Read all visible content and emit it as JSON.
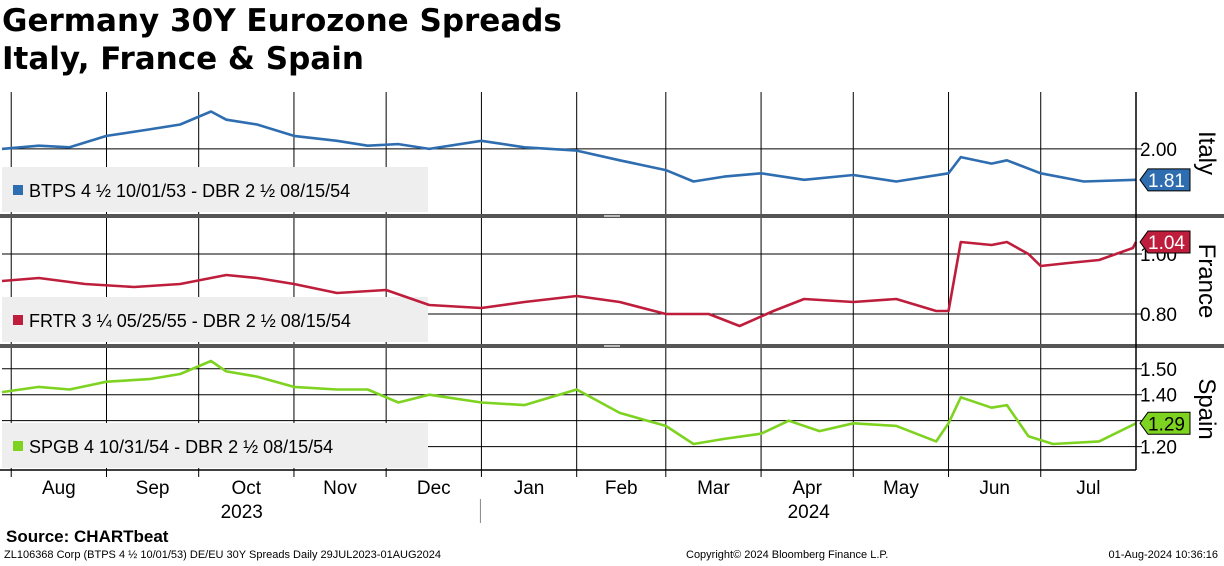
{
  "header": {
    "title_line1": "Germany 30Y Eurozone Spreads",
    "title_line2": "Italy, France & Spain"
  },
  "footer": {
    "source": "Source: CHARTbeat",
    "left": "ZL106368 Corp (BTPS 4 ½ 10/01/53) DE/EU 30Y Spreads  Daily 29JUL2023-01AUG2024",
    "center": "Copyright© 2024 Bloomberg Finance L.P.",
    "right": "01-Aug-2024 10:36:16"
  },
  "colors": {
    "italy": "#2e6db0",
    "france": "#be1e3c",
    "spain": "#7ed321",
    "grid": "#000000",
    "legend_bg": "#eeeeee",
    "separator": "#555555"
  },
  "chart_data": {
    "type": "line",
    "x_axis": {
      "months": [
        "Aug",
        "Sep",
        "Oct",
        "Nov",
        "Dec",
        "Jan",
        "Feb",
        "Mar",
        "Apr",
        "May",
        "Jun",
        "Jul"
      ],
      "years": [
        "2023",
        "2024"
      ],
      "start": "2023-07-29",
      "end": "2024-08-01"
    },
    "panels": [
      {
        "name": "Italy",
        "legend": "BTPS 4 ½ 10/01/53 - DBR 2 ½ 08/15/54",
        "last_value_label": "1.81",
        "ylim": [
          1.6,
          2.35
        ],
        "ticks": [
          2.0
        ],
        "tick_labels": [
          "2.00"
        ],
        "series": {
          "x": [
            "2023-07-29",
            "2023-08-10",
            "2023-08-20",
            "2023-09-01",
            "2023-09-15",
            "2023-09-25",
            "2023-10-05",
            "2023-10-10",
            "2023-10-20",
            "2023-11-01",
            "2023-11-15",
            "2023-11-25",
            "2023-12-05",
            "2023-12-15",
            "2024-01-01",
            "2024-01-15",
            "2024-02-01",
            "2024-02-15",
            "2024-03-01",
            "2024-03-10",
            "2024-03-20",
            "2024-04-01",
            "2024-04-15",
            "2024-05-01",
            "2024-05-15",
            "2024-06-01",
            "2024-06-05",
            "2024-06-15",
            "2024-06-20",
            "2024-07-01",
            "2024-07-15",
            "2024-08-01"
          ],
          "values": [
            2.0,
            2.02,
            2.01,
            2.08,
            2.12,
            2.15,
            2.23,
            2.18,
            2.15,
            2.08,
            2.05,
            2.02,
            2.03,
            2.0,
            2.05,
            2.01,
            1.99,
            1.93,
            1.87,
            1.8,
            1.83,
            1.85,
            1.81,
            1.84,
            1.8,
            1.85,
            1.95,
            1.91,
            1.93,
            1.85,
            1.8,
            1.81
          ]
        }
      },
      {
        "name": "France",
        "legend": "FRTR 3 ¼ 05/25/55 - DBR 2 ½ 08/15/54",
        "last_value_label": "1.04",
        "ylim": [
          0.7,
          1.12
        ],
        "ticks": [
          1.0,
          0.8
        ],
        "tick_labels": [
          "1.00",
          "0.80"
        ],
        "series": {
          "x": [
            "2023-07-29",
            "2023-08-10",
            "2023-08-25",
            "2023-09-10",
            "2023-09-25",
            "2023-10-10",
            "2023-10-20",
            "2023-11-01",
            "2023-11-15",
            "2023-12-01",
            "2023-12-15",
            "2024-01-01",
            "2024-01-15",
            "2024-02-01",
            "2024-02-15",
            "2024-03-01",
            "2024-03-15",
            "2024-03-25",
            "2024-04-05",
            "2024-04-15",
            "2024-05-01",
            "2024-05-15",
            "2024-05-28",
            "2024-06-01",
            "2024-06-05",
            "2024-06-15",
            "2024-06-20",
            "2024-06-27",
            "2024-07-01",
            "2024-07-10",
            "2024-07-20",
            "2024-07-31",
            "2024-08-01"
          ],
          "values": [
            0.91,
            0.92,
            0.9,
            0.89,
            0.9,
            0.93,
            0.92,
            0.9,
            0.87,
            0.88,
            0.83,
            0.82,
            0.84,
            0.86,
            0.84,
            0.8,
            0.8,
            0.76,
            0.81,
            0.85,
            0.84,
            0.85,
            0.81,
            0.81,
            1.04,
            1.03,
            1.04,
            1.0,
            0.96,
            0.97,
            0.98,
            1.02,
            1.04
          ]
        }
      },
      {
        "name": "Spain",
        "legend": "SPGB 4 10/31/54 - DBR 2 ½ 08/15/54",
        "last_value_label": "1.29",
        "ylim": [
          1.11,
          1.58
        ],
        "ticks": [
          1.5,
          1.4,
          1.3,
          1.2
        ],
        "tick_labels": [
          "1.50",
          "1.40",
          "",
          "1.20"
        ],
        "series": {
          "x": [
            "2023-07-29",
            "2023-08-10",
            "2023-08-20",
            "2023-09-01",
            "2023-09-15",
            "2023-09-25",
            "2023-10-05",
            "2023-10-10",
            "2023-10-20",
            "2023-11-01",
            "2023-11-15",
            "2023-11-25",
            "2023-12-05",
            "2023-12-15",
            "2024-01-01",
            "2024-01-15",
            "2024-02-01",
            "2024-02-15",
            "2024-03-01",
            "2024-03-10",
            "2024-03-20",
            "2024-04-01",
            "2024-04-10",
            "2024-04-20",
            "2024-05-01",
            "2024-05-15",
            "2024-05-28",
            "2024-06-01",
            "2024-06-05",
            "2024-06-15",
            "2024-06-20",
            "2024-06-27",
            "2024-07-05",
            "2024-07-20",
            "2024-08-01"
          ],
          "values": [
            1.41,
            1.43,
            1.42,
            1.45,
            1.46,
            1.48,
            1.53,
            1.49,
            1.47,
            1.43,
            1.42,
            1.42,
            1.37,
            1.4,
            1.37,
            1.36,
            1.42,
            1.33,
            1.28,
            1.21,
            1.23,
            1.25,
            1.3,
            1.26,
            1.29,
            1.28,
            1.22,
            1.29,
            1.39,
            1.35,
            1.36,
            1.24,
            1.21,
            1.22,
            1.29
          ]
        }
      }
    ]
  }
}
